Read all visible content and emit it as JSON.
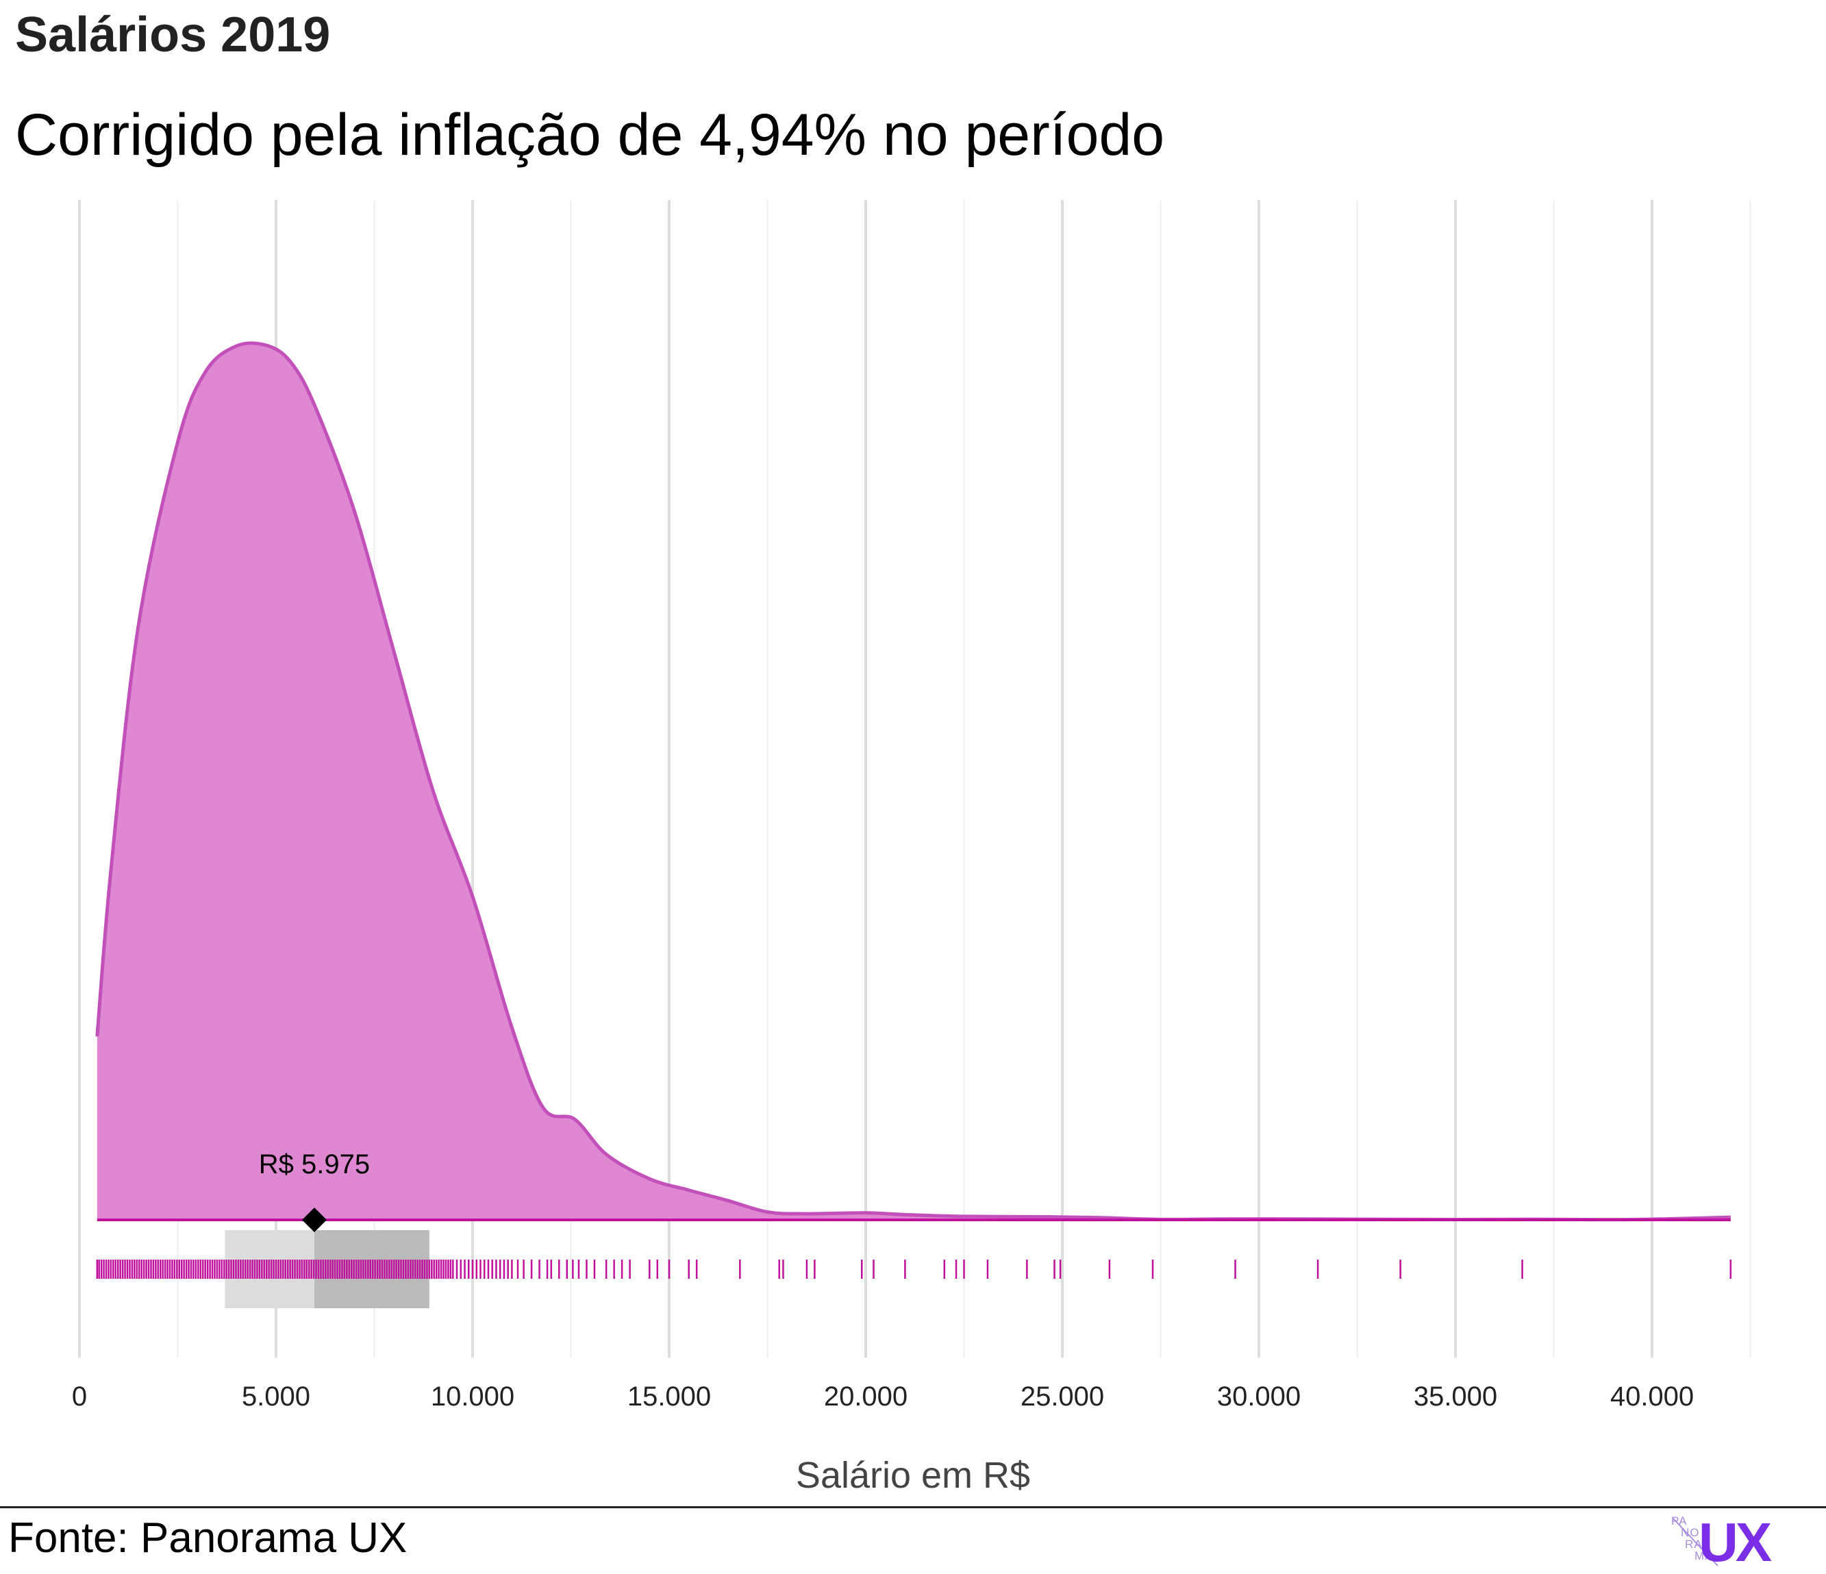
{
  "header": {
    "title": "Salários 2019",
    "subtitle": "Corrigido pela inflação de 4,94% no período"
  },
  "footer": {
    "source": "Fonte: Panorama UX",
    "logo_small": [
      "PA",
      "NO",
      "RA",
      "MA"
    ],
    "logo_large": "UX"
  },
  "colors": {
    "density_fill": "#dd88d0",
    "density_line": "#c34fbb",
    "baseline": "#c0109e",
    "rug": "#c0109e",
    "iqr_light": "#dcdcdc",
    "iqr_dark": "#bababa",
    "grid_major": "#dddddd",
    "grid_minor": "#eeeeee"
  },
  "chart_data": {
    "type": "area",
    "title": "Salários 2019",
    "subtitle": "Corrigido pela inflação de 4,94% no período",
    "xlabel": "Salário em R$",
    "ylabel": "",
    "xlim": [
      0,
      43000
    ],
    "ylim": [
      0,
      1.1
    ],
    "grid": true,
    "x_ticks": [
      0,
      5000,
      10000,
      15000,
      20000,
      25000,
      30000,
      35000,
      40000
    ],
    "x_tick_labels": [
      "0",
      "5.000",
      "10.000",
      "15.000",
      "20.000",
      "25.000",
      "30.000",
      "35.000",
      "40.000"
    ],
    "series": [
      {
        "x": [
          450,
          800,
          1500,
          2500,
          3200,
          4000,
          4800,
          5400,
          6000,
          7000,
          8000,
          9000,
          10000,
          11000,
          11800,
          12600,
          13400,
          14500,
          15500,
          16500,
          17500,
          18500,
          20000,
          21000,
          22500,
          24500,
          26000,
          27500,
          29000,
          31000,
          33000,
          35000,
          37000,
          39500,
          42000
        ],
        "values": [
          0.21,
          0.4,
          0.68,
          0.89,
          0.97,
          1.0,
          1.0,
          0.98,
          0.93,
          0.81,
          0.65,
          0.49,
          0.37,
          0.22,
          0.128,
          0.115,
          0.075,
          0.047,
          0.034,
          0.022,
          0.009,
          0.007,
          0.008,
          0.006,
          0.004,
          0.0035,
          0.0025,
          0.0005,
          0.001,
          0.001,
          0.0007,
          0.0004,
          0.0007,
          0.0004,
          0.003
        ]
      }
    ],
    "median": 5975,
    "median_label": "R$ 5.975",
    "quartiles": [
      3700,
      5975,
      8900
    ],
    "rug": [
      450,
      500,
      560,
      620,
      680,
      740,
      800,
      860,
      920,
      980,
      1040,
      1100,
      1160,
      1220,
      1280,
      1340,
      1400,
      1460,
      1520,
      1580,
      1640,
      1700,
      1760,
      1820,
      1880,
      1940,
      2000,
      2060,
      2120,
      2180,
      2240,
      2300,
      2360,
      2420,
      2480,
      2540,
      2600,
      2660,
      2720,
      2780,
      2840,
      2900,
      2960,
      3020,
      3080,
      3140,
      3200,
      3260,
      3320,
      3380,
      3440,
      3500,
      3560,
      3620,
      3680,
      3740,
      3800,
      3860,
      3920,
      3980,
      4040,
      4100,
      4160,
      4220,
      4280,
      4340,
      4400,
      4460,
      4520,
      4580,
      4640,
      4700,
      4760,
      4820,
      4880,
      4940,
      5000,
      5060,
      5120,
      5180,
      5240,
      5300,
      5360,
      5420,
      5480,
      5540,
      5600,
      5660,
      5720,
      5780,
      5840,
      5900,
      5960,
      6020,
      6080,
      6140,
      6200,
      6260,
      6320,
      6380,
      6440,
      6500,
      6560,
      6620,
      6680,
      6740,
      6800,
      6860,
      6920,
      6980,
      7040,
      7100,
      7160,
      7220,
      7280,
      7340,
      7400,
      7460,
      7520,
      7580,
      7640,
      7700,
      7760,
      7820,
      7880,
      7940,
      8000,
      8060,
      8120,
      8180,
      8240,
      8300,
      8360,
      8420,
      8480,
      8540,
      8600,
      8660,
      8720,
      8780,
      8840,
      8900,
      8960,
      9020,
      9080,
      9140,
      9200,
      9260,
      9320,
      9380,
      9440,
      9500,
      9600,
      9700,
      9800,
      9900,
      10000,
      10100,
      10200,
      10300,
      10400,
      10500,
      10600,
      10700,
      10800,
      10900,
      11000,
      11150,
      11300,
      11500,
      11700,
      11900,
      12000,
      12200,
      12400,
      12550,
      12700,
      12900,
      13100,
      13400,
      13600,
      13800,
      14000,
      14500,
      14700,
      15000,
      15500,
      15700,
      16800,
      17800,
      17900,
      18500,
      18700,
      19900,
      20200,
      21000,
      22000,
      22300,
      22500,
      23100,
      24100,
      24800,
      24950,
      26200,
      27300,
      29400,
      31500,
      33600,
      36700,
      42000
    ]
  }
}
